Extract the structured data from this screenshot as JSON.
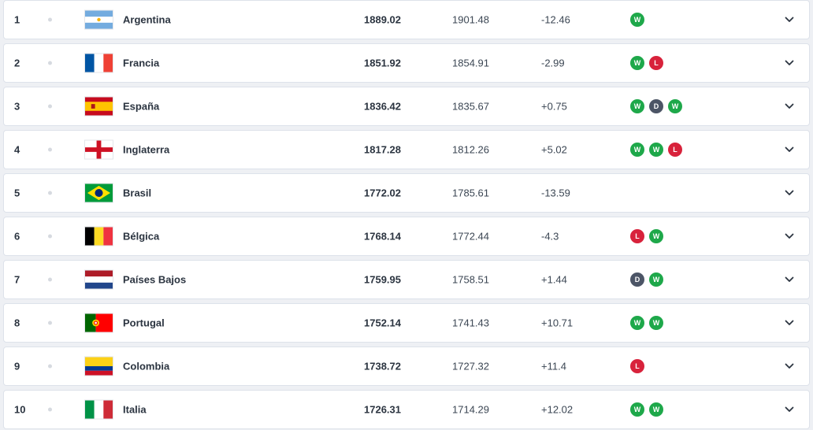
{
  "colors": {
    "win": "#1ea84a",
    "loss": "#d8223b",
    "draw": "#4c5566"
  },
  "rows": [
    {
      "rank": "1",
      "country": "Argentina",
      "flag": "argentina-flag",
      "points": "1889.02",
      "previous": "1901.48",
      "change": "-12.46",
      "results": [
        "W"
      ]
    },
    {
      "rank": "2",
      "country": "Francia",
      "flag": "france-flag",
      "points": "1851.92",
      "previous": "1854.91",
      "change": "-2.99",
      "results": [
        "W",
        "L"
      ]
    },
    {
      "rank": "3",
      "country": "España",
      "flag": "spain-flag",
      "points": "1836.42",
      "previous": "1835.67",
      "change": "+0.75",
      "results": [
        "W",
        "D",
        "W"
      ]
    },
    {
      "rank": "4",
      "country": "Inglaterra",
      "flag": "england-flag",
      "points": "1817.28",
      "previous": "1812.26",
      "change": "+5.02",
      "results": [
        "W",
        "W",
        "L"
      ]
    },
    {
      "rank": "5",
      "country": "Brasil",
      "flag": "brazil-flag",
      "points": "1772.02",
      "previous": "1785.61",
      "change": "-13.59",
      "results": []
    },
    {
      "rank": "6",
      "country": "Bélgica",
      "flag": "belgium-flag",
      "points": "1768.14",
      "previous": "1772.44",
      "change": "-4.3",
      "results": [
        "L",
        "W"
      ]
    },
    {
      "rank": "7",
      "country": "Países Bajos",
      "flag": "netherlands-flag",
      "points": "1759.95",
      "previous": "1758.51",
      "change": "+1.44",
      "results": [
        "D",
        "W"
      ]
    },
    {
      "rank": "8",
      "country": "Portugal",
      "flag": "portugal-flag",
      "points": "1752.14",
      "previous": "1741.43",
      "change": "+10.71",
      "results": [
        "W",
        "W"
      ]
    },
    {
      "rank": "9",
      "country": "Colombia",
      "flag": "colombia-flag",
      "points": "1738.72",
      "previous": "1727.32",
      "change": "+11.4",
      "results": [
        "L"
      ]
    },
    {
      "rank": "10",
      "country": "Italia",
      "flag": "italy-flag",
      "points": "1726.31",
      "previous": "1714.29",
      "change": "+12.02",
      "results": [
        "W",
        "W"
      ]
    }
  ]
}
